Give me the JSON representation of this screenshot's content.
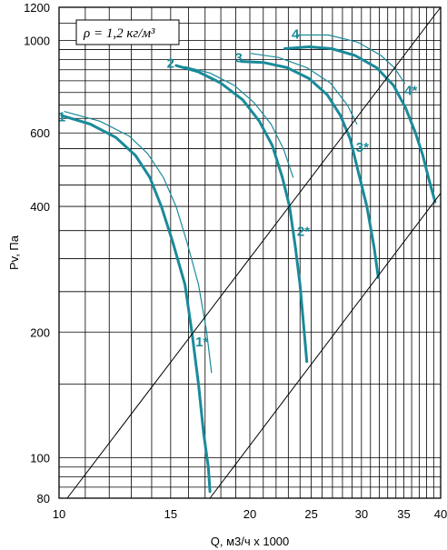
{
  "chart_data": {
    "type": "line",
    "title": "",
    "xlabel": "Q, м3/ч х 1000",
    "ylabel": "Pv, Па",
    "x_scale": "log",
    "y_scale": "log",
    "xlim": [
      10,
      40
    ],
    "ylim": [
      80,
      1200
    ],
    "x_tick_labels": [
      "10",
      "15",
      "20",
      "25",
      "30",
      "35",
      "40"
    ],
    "x_tick_values": [
      10,
      15,
      20,
      25,
      30,
      35,
      40
    ],
    "y_tick_labels": [
      "80",
      "100",
      "200",
      "400",
      "600",
      "1000",
      "1200"
    ],
    "y_tick_values": [
      80,
      100,
      200,
      400,
      600,
      1000,
      1200
    ],
    "grid": true,
    "legend_box": "ρ = 1,2 кг/м³",
    "line_color": "#1a8a9a",
    "series": [
      {
        "name": "1",
        "points": [
          [
            10.1,
            660
          ],
          [
            11.2,
            630
          ],
          [
            12.3,
            585
          ],
          [
            13.2,
            530
          ],
          [
            13.9,
            470
          ],
          [
            14.5,
            400
          ],
          [
            15.1,
            330
          ],
          [
            15.8,
            260
          ],
          [
            16.2,
            200
          ],
          [
            16.6,
            150
          ],
          [
            16.9,
            115
          ],
          [
            17.2,
            95
          ],
          [
            17.3,
            83
          ]
        ]
      },
      {
        "name": "1 (thin)",
        "points": [
          [
            10.2,
            675
          ],
          [
            11.6,
            640
          ],
          [
            12.9,
            590
          ],
          [
            13.8,
            535
          ],
          [
            14.6,
            470
          ],
          [
            15.3,
            400
          ],
          [
            15.9,
            330
          ],
          [
            16.6,
            260
          ],
          [
            17.1,
            200
          ],
          [
            17.4,
            160
          ]
        ]
      },
      {
        "name": "2",
        "points": [
          [
            15.3,
            870
          ],
          [
            16.6,
            840
          ],
          [
            18.0,
            790
          ],
          [
            19.5,
            720
          ],
          [
            20.7,
            640
          ],
          [
            21.7,
            560
          ],
          [
            22.5,
            470
          ],
          [
            23.1,
            400
          ],
          [
            23.6,
            320
          ],
          [
            24.0,
            260
          ],
          [
            24.3,
            210
          ],
          [
            24.6,
            170
          ]
        ]
      },
      {
        "name": "2 (thin)",
        "points": [
          [
            15.8,
            865
          ],
          [
            17.3,
            835
          ],
          [
            18.9,
            780
          ],
          [
            20.3,
            710
          ],
          [
            21.6,
            630
          ],
          [
            22.6,
            550
          ],
          [
            23.4,
            470
          ]
        ]
      },
      {
        "name": "3",
        "points": [
          [
            19.4,
            890
          ],
          [
            21.0,
            885
          ],
          [
            22.9,
            860
          ],
          [
            24.8,
            810
          ],
          [
            26.5,
            740
          ],
          [
            27.8,
            660
          ],
          [
            28.8,
            580
          ],
          [
            29.8,
            470
          ],
          [
            30.6,
            400
          ],
          [
            31.4,
            320
          ],
          [
            31.9,
            270
          ]
        ]
      },
      {
        "name": "3 (thin)",
        "points": [
          [
            20.1,
            930
          ],
          [
            22.2,
            910
          ],
          [
            24.6,
            860
          ],
          [
            26.8,
            790
          ],
          [
            28.5,
            700
          ],
          [
            29.5,
            630
          ]
        ]
      },
      {
        "name": "4",
        "points": [
          [
            22.7,
            955
          ],
          [
            24.8,
            965
          ],
          [
            26.9,
            955
          ],
          [
            29.3,
            920
          ],
          [
            31.7,
            860
          ],
          [
            33.7,
            780
          ],
          [
            35.2,
            690
          ],
          [
            36.5,
            600
          ],
          [
            37.5,
            530
          ],
          [
            38.4,
            460
          ],
          [
            39.2,
            410
          ]
        ]
      },
      {
        "name": "4 (thin)",
        "points": [
          [
            23.7,
            1030
          ],
          [
            26.6,
            1030
          ],
          [
            29.6,
            990
          ],
          [
            32.2,
            920
          ],
          [
            33.8,
            860
          ],
          [
            35.1,
            790
          ]
        ]
      },
      {
        "name": "system-1",
        "points": [
          [
            10.3,
            80
          ],
          [
            40,
            1200
          ]
        ]
      },
      {
        "name": "system-2",
        "points": [
          [
            17.3,
            80
          ],
          [
            40,
            430
          ]
        ]
      }
    ],
    "curve_labels": [
      {
        "text": "1",
        "x": 10.1,
        "y": 640
      },
      {
        "text": "2",
        "x": 15.0,
        "y": 860
      },
      {
        "text": "3",
        "x": 19.2,
        "y": 885
      },
      {
        "text": "4",
        "x": 23.6,
        "y": 1010
      },
      {
        "text": "1*",
        "x": 16.8,
        "y": 185
      },
      {
        "text": "2*",
        "x": 24.3,
        "y": 340
      },
      {
        "text": "3*",
        "x": 30.1,
        "y": 540
      },
      {
        "text": "4*",
        "x": 35.9,
        "y": 740
      }
    ]
  }
}
